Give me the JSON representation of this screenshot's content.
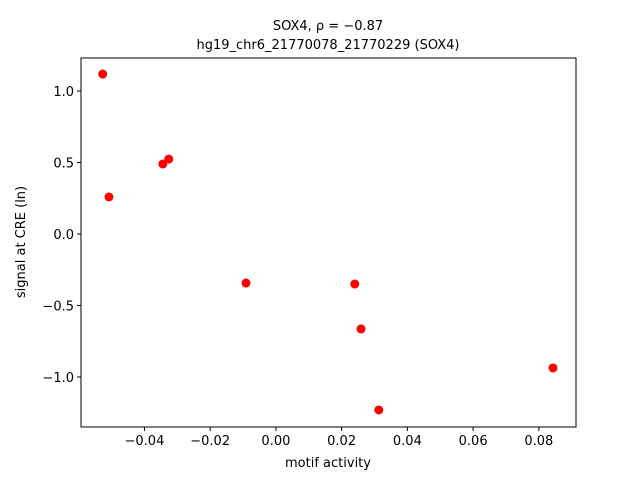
{
  "chart_data": {
    "type": "scatter",
    "title": [
      "SOX4, ρ = −0.87",
      "hg19_chr6_21770078_21770229 (SOX4)"
    ],
    "x_label": "motif activity",
    "y_label": "signal at CRE (ln)",
    "color": "#ff0000",
    "series": [
      {
        "x": [
          -0.0527,
          -0.0508,
          -0.0344,
          -0.0326,
          -0.0091,
          0.024,
          0.0259,
          0.0313,
          0.0843
        ],
        "values": [
          1.119,
          0.259,
          0.49,
          0.524,
          -0.343,
          -0.35,
          -0.664,
          -1.231,
          -0.937
        ]
      }
    ],
    "xlim": [
      -0.0593,
      0.0913
    ],
    "ylim": [
      -1.35,
      1.231
    ],
    "xticks": [
      {
        "value": -0.04,
        "label": "−0.04"
      },
      {
        "value": -0.02,
        "label": "−0.02"
      },
      {
        "value": 0,
        "label": "0.00"
      },
      0.02,
      0.04,
      0.06,
      0.08
    ],
    "yticks": [
      {
        "value": -1,
        "label": "−1.0"
      },
      {
        "value": -0.5,
        "label": "−0.5"
      },
      {
        "value": 0,
        "label": "0.0"
      },
      0.5,
      {
        "value": 1,
        "label": "1.0"
      }
    ]
  }
}
